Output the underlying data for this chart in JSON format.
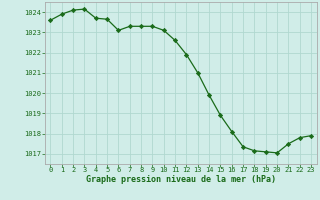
{
  "x": [
    0,
    1,
    2,
    3,
    4,
    5,
    6,
    7,
    8,
    9,
    10,
    11,
    12,
    13,
    14,
    15,
    16,
    17,
    18,
    19,
    20,
    21,
    22,
    23
  ],
  "y": [
    1023.6,
    1023.9,
    1024.1,
    1024.15,
    1023.7,
    1023.65,
    1023.1,
    1023.3,
    1023.3,
    1023.3,
    1023.1,
    1022.6,
    1021.9,
    1021.0,
    1019.9,
    1018.9,
    1018.1,
    1017.35,
    1017.15,
    1017.1,
    1017.05,
    1017.5,
    1017.8,
    1017.9
  ],
  "ylim": [
    1016.5,
    1024.5
  ],
  "yticks": [
    1017,
    1018,
    1019,
    1020,
    1021,
    1022,
    1023,
    1024
  ],
  "xticks": [
    0,
    1,
    2,
    3,
    4,
    5,
    6,
    7,
    8,
    9,
    10,
    11,
    12,
    13,
    14,
    15,
    16,
    17,
    18,
    19,
    20,
    21,
    22,
    23
  ],
  "line_color": "#1a6b1a",
  "marker_color": "#1a6b1a",
  "bg_color": "#d0ede8",
  "grid_color": "#b0d8d0",
  "xlabel": "Graphe pression niveau de la mer (hPa)",
  "xlabel_color": "#1a6b1a",
  "axis_color": "#aaaaaa",
  "tick_color": "#1a6b1a"
}
